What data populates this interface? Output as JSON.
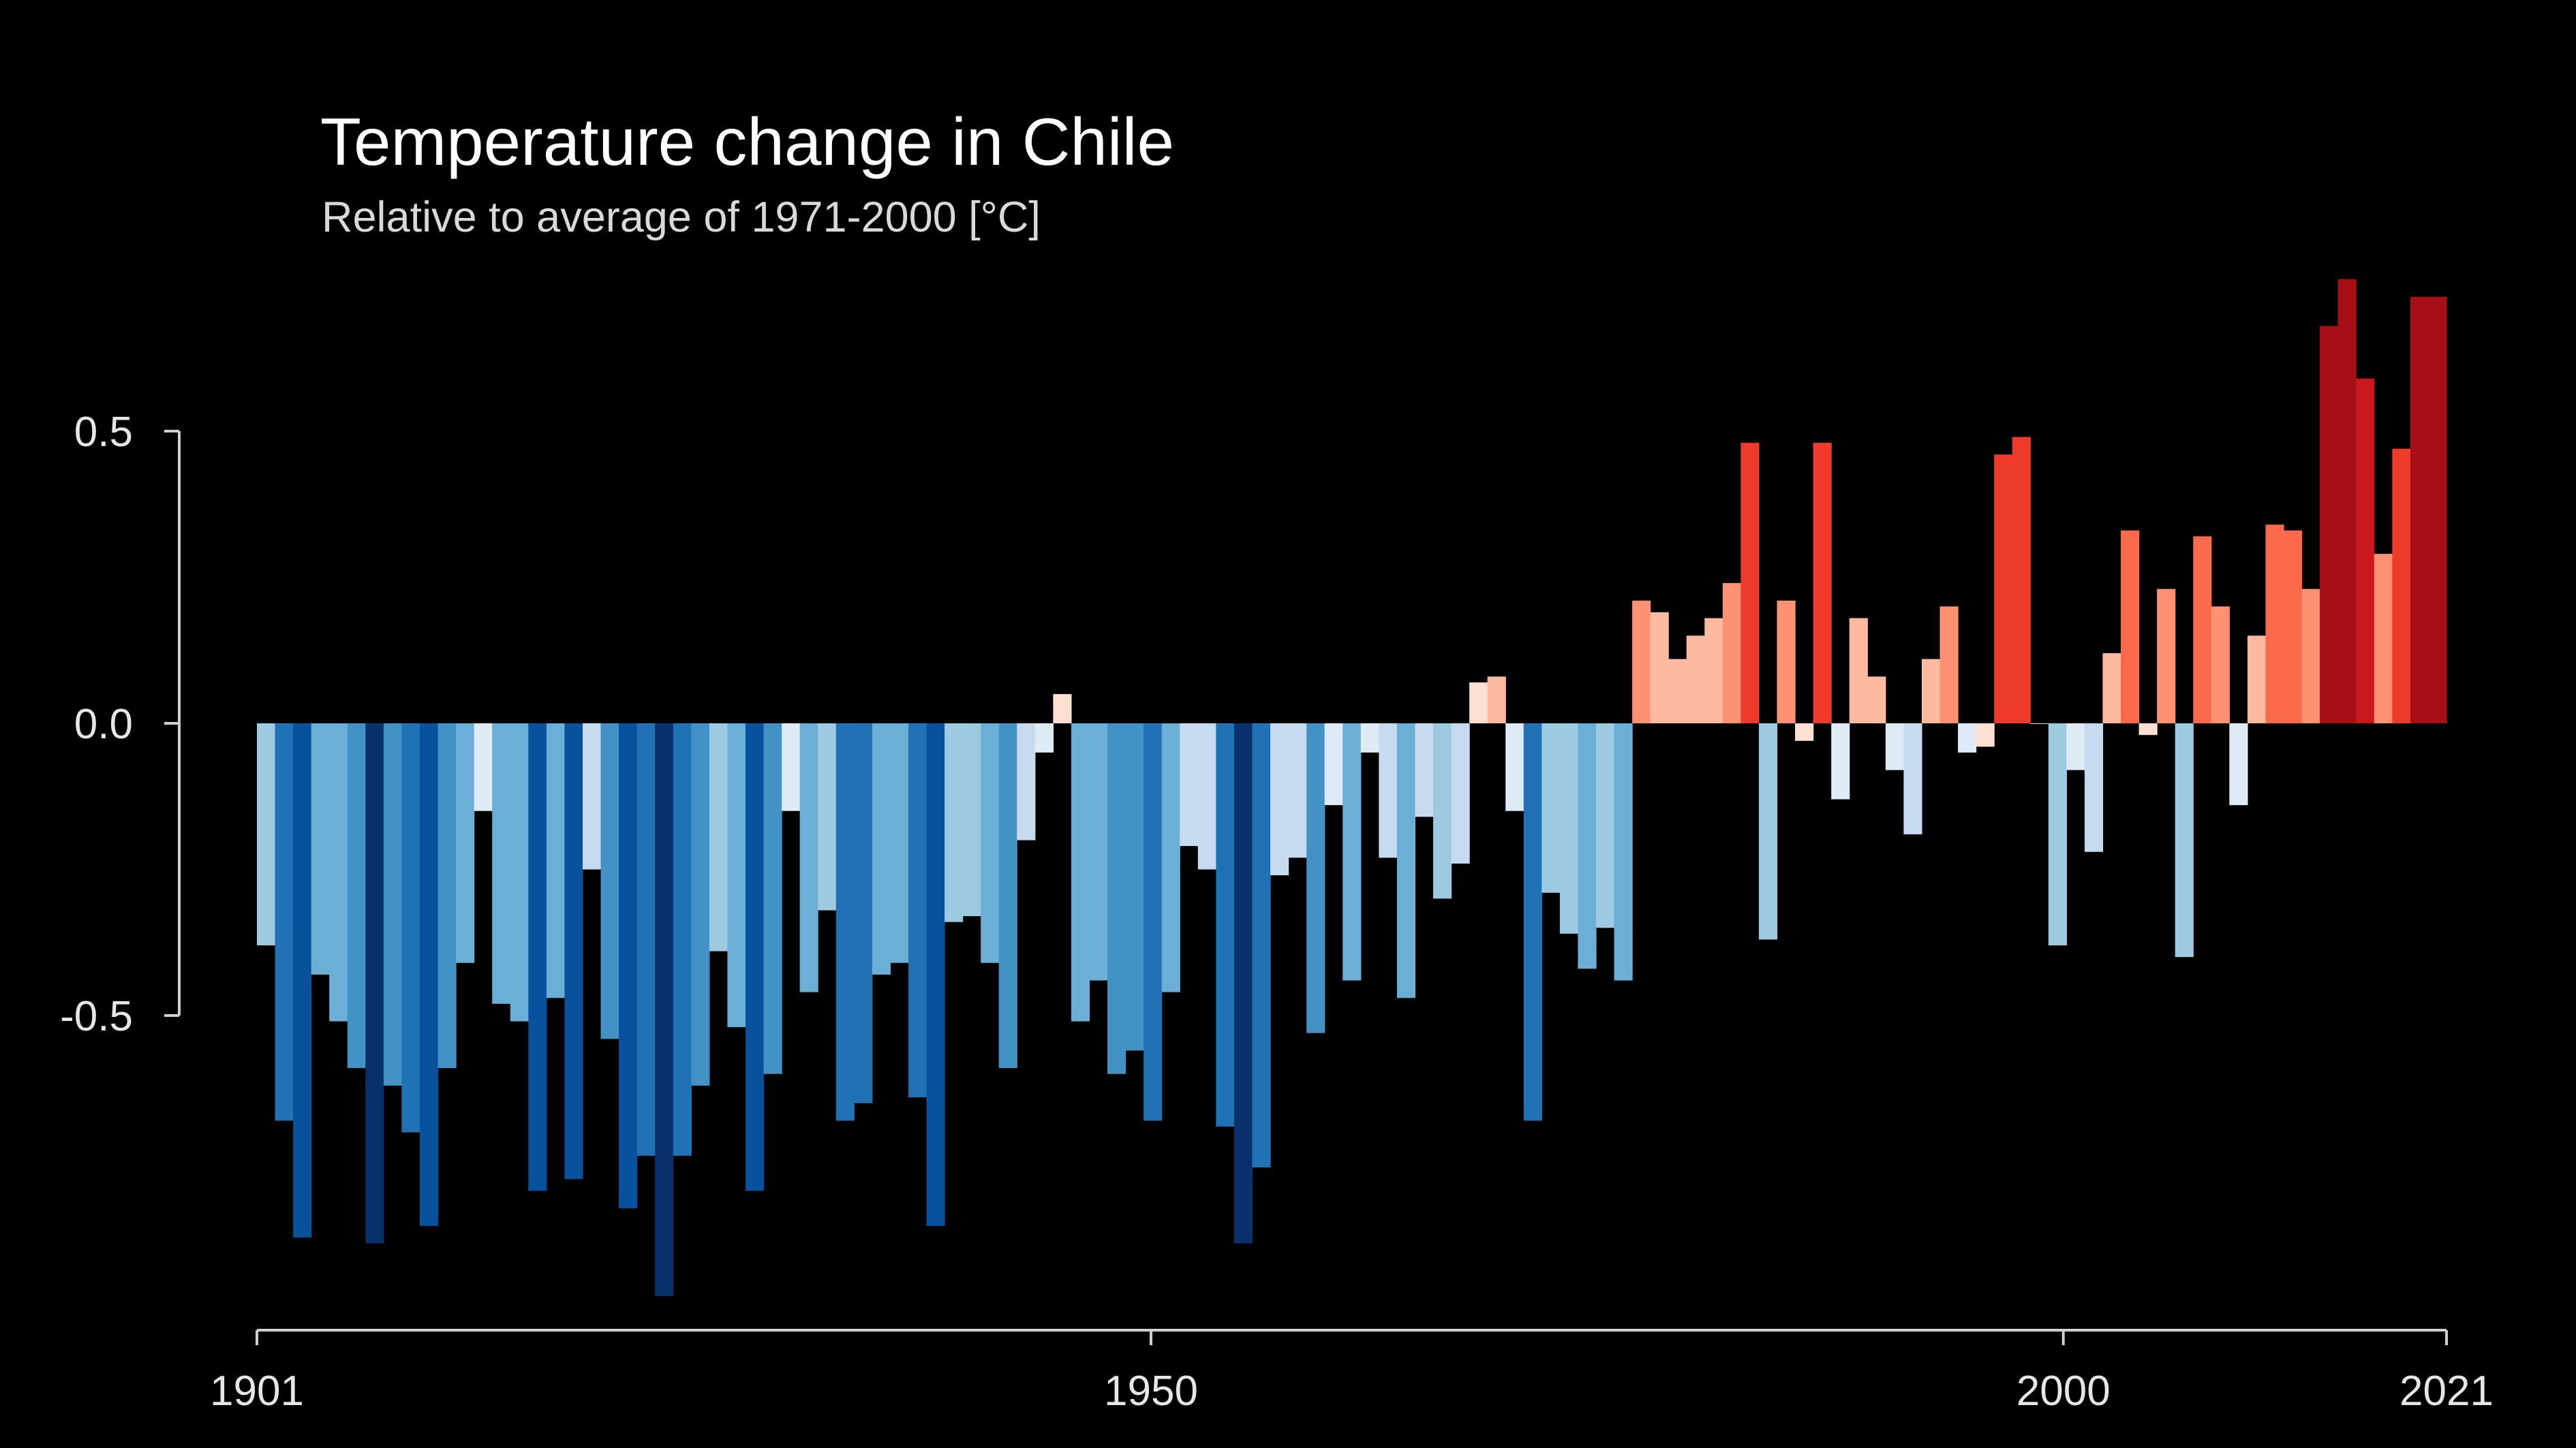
{
  "chart_data": {
    "type": "bar",
    "title": "Temperature change in Chile",
    "subtitle": "Relative to average of 1971-2000  [°C]",
    "xlabel": "",
    "ylabel": "",
    "x_start": 1901,
    "x_end": 2021,
    "x_ticks": [
      "1901",
      "1950",
      "2000",
      "2021"
    ],
    "y_ticks": [
      "0.5",
      "0.0",
      "-0.5"
    ],
    "ylim": [
      -1.05,
      0.78
    ],
    "grid": false,
    "legend": "none",
    "color_scale": [
      "#08306b",
      "#08519c",
      "#2171b5",
      "#4292c6",
      "#6baed6",
      "#9ecae1",
      "#c6dbef",
      "#deebf7",
      "#fee0d2",
      "#fcbba1",
      "#fc9272",
      "#fb6a4a",
      "#ef3b2c",
      "#cb181d",
      "#a50f15"
    ],
    "series": [
      {
        "name": "",
        "x": [
          1901,
          1902,
          1903,
          1904,
          1905,
          1906,
          1907,
          1908,
          1909,
          1910,
          1911,
          1912,
          1913,
          1914,
          1915,
          1916,
          1917,
          1918,
          1919,
          1920,
          1921,
          1922,
          1923,
          1924,
          1925,
          1926,
          1927,
          1928,
          1929,
          1930,
          1931,
          1932,
          1933,
          1934,
          1935,
          1936,
          1937,
          1938,
          1939,
          1940,
          1941,
          1942,
          1943,
          1944,
          1945,
          1946,
          1947,
          1948,
          1949,
          1950,
          1951,
          1952,
          1953,
          1954,
          1955,
          1956,
          1957,
          1958,
          1959,
          1960,
          1961,
          1962,
          1963,
          1964,
          1965,
          1966,
          1967,
          1968,
          1969,
          1970,
          1971,
          1972,
          1973,
          1974,
          1975,
          1976,
          1977,
          1978,
          1979,
          1980,
          1981,
          1982,
          1983,
          1984,
          1985,
          1986,
          1987,
          1988,
          1989,
          1990,
          1991,
          1992,
          1993,
          1994,
          1995,
          1996,
          1997,
          1998,
          1999,
          2000,
          2001,
          2002,
          2003,
          2004,
          2005,
          2006,
          2007,
          2008,
          2009,
          2010,
          2011,
          2012,
          2013,
          2014,
          2015,
          2016,
          2017,
          2018,
          2019,
          2020,
          2021
        ],
        "values": [
          -0.38,
          -0.68,
          -0.88,
          -0.43,
          -0.51,
          -0.59,
          -0.89,
          -0.62,
          -0.7,
          -0.86,
          -0.59,
          -0.41,
          -0.15,
          -0.48,
          -0.51,
          -0.8,
          -0.47,
          -0.78,
          -0.25,
          -0.54,
          -0.83,
          -0.74,
          -0.98,
          -0.74,
          -0.62,
          -0.39,
          -0.52,
          -0.8,
          -0.6,
          -0.15,
          -0.46,
          -0.32,
          -0.68,
          -0.65,
          -0.43,
          -0.41,
          -0.64,
          -0.86,
          -0.34,
          -0.33,
          -0.41,
          -0.59,
          -0.2,
          -0.05,
          0.05,
          -0.51,
          -0.44,
          -0.6,
          -0.56,
          -0.68,
          -0.46,
          -0.21,
          -0.25,
          -0.69,
          -0.89,
          -0.76,
          -0.26,
          -0.23,
          -0.53,
          -0.14,
          -0.44,
          -0.05,
          -0.23,
          -0.47,
          -0.16,
          -0.3,
          -0.24,
          0.07,
          0.08,
          -0.15,
          -0.68,
          -0.29,
          -0.36,
          -0.42,
          -0.35,
          -0.44,
          0.21,
          0.19,
          0.11,
          0.15,
          0.18,
          0.24,
          0.48,
          -0.37,
          0.21,
          -0.03,
          0.48,
          -0.13,
          0.18,
          0.08,
          -0.08,
          -0.19,
          0.11,
          0.2,
          -0.05,
          -0.04,
          0.46,
          0.49,
          0.0,
          -0.38,
          -0.08,
          -0.22,
          0.12,
          0.33,
          -0.02,
          0.23,
          -0.4,
          0.32,
          0.2,
          -0.14,
          0.15,
          0.34,
          0.33,
          0.23,
          0.68,
          0.76,
          0.59,
          0.29,
          0.47,
          0.73,
          0.73
        ]
      }
    ]
  }
}
